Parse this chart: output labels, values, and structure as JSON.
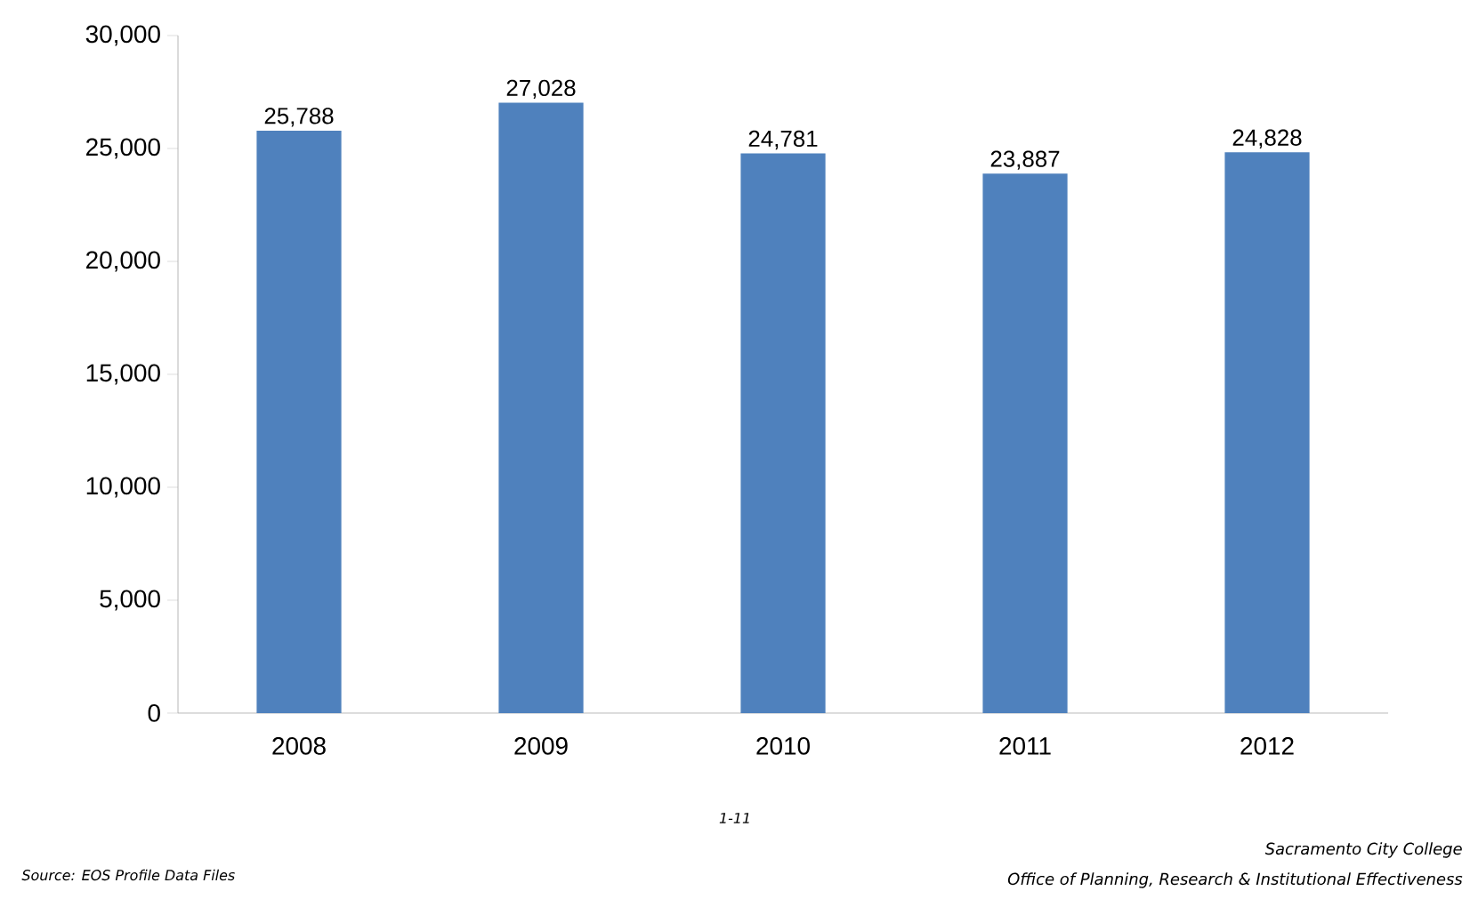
{
  "chart_data": {
    "type": "bar",
    "categories": [
      "2008",
      "2009",
      "2010",
      "2011",
      "2012"
    ],
    "values": [
      25788,
      27028,
      24781,
      23887,
      24828
    ],
    "color": "#4f81bd",
    "value_labels": [
      "25,788",
      "27,028",
      "24,781",
      "23,887",
      "24,828"
    ],
    "ylim": [
      0,
      30000
    ],
    "yticks": [
      {
        "value": 0,
        "label": "0"
      },
      {
        "value": 5000,
        "label": "5,000"
      },
      {
        "value": 10000,
        "label": "10,000"
      },
      {
        "value": 15000,
        "label": "15,000"
      },
      {
        "value": 20000,
        "label": "20,000"
      },
      {
        "value": 25000,
        "label": "25,000"
      },
      {
        "value": 30000,
        "label": "30,000"
      }
    ],
    "grid": false,
    "annotations": [
      "Source: EOS Profile Data Files",
      "1-11",
      "Sacramento City College",
      "Office of Planning, Research & Institutional Effectiveness"
    ]
  }
}
